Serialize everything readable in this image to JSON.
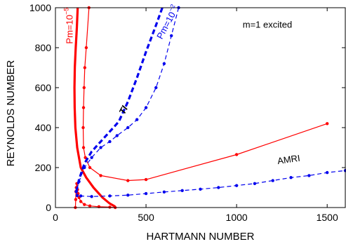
{
  "chart_data": {
    "type": "line",
    "xlabel": "HARTMANN NUMBER",
    "ylabel": "REYNOLDS NUMBER",
    "xlim": [
      0,
      1600
    ],
    "ylim": [
      0,
      1000
    ],
    "xticks": [
      0,
      500,
      1000,
      1500
    ],
    "yticks": [
      0,
      200,
      400,
      600,
      800,
      1000
    ],
    "grid": false,
    "legend": "none",
    "series": [
      {
        "style": "thick-solid",
        "color": "#ff0000",
        "x": [
          123,
          118,
          112,
          107,
          105,
          106,
          110,
          120,
          140,
          170,
          210,
          260,
          300,
          330
        ],
        "y": [
          1000,
          900,
          800,
          700,
          600,
          500,
          400,
          300,
          200,
          150,
          100,
          50,
          20,
          5
        ]
      },
      {
        "style": "thin-solid-markers",
        "color": "#ff0000",
        "x": [
          185,
          170,
          162,
          158,
          155,
          153,
          155,
          165,
          190,
          250,
          400,
          500,
          1000,
          1500
        ],
        "y": [
          1000,
          800,
          700,
          600,
          500,
          400,
          300,
          250,
          200,
          160,
          135,
          140,
          265,
          420
        ]
      },
      {
        "style": "thin-solid-markers",
        "color": "#ff0000",
        "x": [
          110,
          112,
          113,
          115,
          118,
          122,
          125,
          130,
          140,
          160,
          190,
          240,
          300,
          330
        ],
        "y": [
          0,
          40,
          80,
          100,
          120,
          90,
          70,
          50,
          30,
          15,
          8,
          4,
          2,
          0
        ]
      },
      {
        "style": "thick-dashed",
        "color": "#0000ee",
        "x": [
          115,
          130,
          160,
          200,
          250,
          300,
          350,
          400,
          450,
          500,
          550,
          590
        ],
        "y": [
          80,
          140,
          220,
          280,
          330,
          380,
          430,
          530,
          650,
          780,
          900,
          1000
        ]
      },
      {
        "style": "thin-dashed-markers",
        "color": "#0000ee",
        "x": [
          680,
          640,
          600,
          555,
          500,
          450,
          400,
          340,
          300,
          250,
          200,
          160,
          130,
          115,
          120,
          140,
          200,
          300,
          400,
          500,
          600,
          700,
          800,
          900,
          1000,
          1100,
          1200,
          1300,
          1400,
          1500,
          1600
        ],
        "y": [
          1000,
          860,
          720,
          600,
          500,
          440,
          400,
          360,
          330,
          300,
          250,
          200,
          130,
          80,
          60,
          58,
          55,
          58,
          62,
          70,
          78,
          85,
          92,
          100,
          110,
          120,
          135,
          150,
          160,
          175,
          185
        ]
      }
    ],
    "annotations": [
      {
        "text": "Pm=10",
        "sup": "−5",
        "color": "#ff0000",
        "x": 95,
        "y": 910,
        "rotation": -90
      },
      {
        "text": "Pm=10",
        "sup": "−2",
        "color": "#0000ee",
        "x": 635,
        "y": 920,
        "rotation": -62
      },
      {
        "text": "m=1 excited",
        "color": "#000000",
        "x": 1170,
        "y": 900,
        "rotation": 0
      },
      {
        "text": "TI",
        "color": "#000000",
        "x": 390,
        "y": 480,
        "rotation": -62
      },
      {
        "text": "AMRI",
        "color": "#000000",
        "x": 1290,
        "y": 225,
        "rotation": -8
      }
    ]
  }
}
